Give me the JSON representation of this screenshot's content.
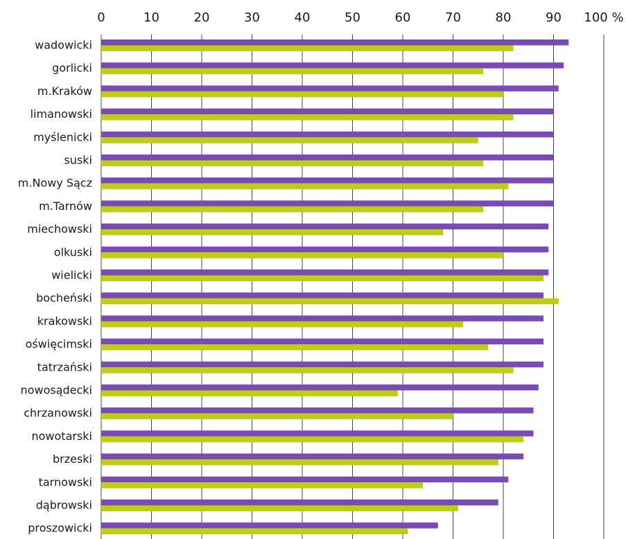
{
  "chart_data": {
    "type": "bar",
    "orientation": "horizontal",
    "categories": [
      "wadowicki",
      "gorlicki",
      "m.Kraków",
      "limanowski",
      "myślenicki",
      "suski",
      "m.Nowy Sącz",
      "m.Tarnów",
      "miechowski",
      "olkuski",
      "wielicki",
      "bocheński",
      "krakowski",
      "oświęcimski",
      "tatrzański",
      "nowosądecki",
      "chrzanowski",
      "nowotarski",
      "brzeski",
      "tarnowski",
      "dąbrowski",
      "proszowicki"
    ],
    "series": [
      {
        "color": "#7b4bb5",
        "values": [
          93,
          92,
          91,
          90,
          90,
          90,
          90,
          90,
          89,
          89,
          89,
          88,
          88,
          88,
          88,
          87,
          86,
          86,
          84,
          81,
          79,
          67
        ]
      },
      {
        "color": "#bccf13",
        "values": [
          82,
          76,
          80,
          82,
          75,
          76,
          81,
          76,
          68,
          80,
          88,
          91,
          72,
          77,
          82,
          59,
          70,
          84,
          79,
          64,
          71,
          61
        ]
      }
    ],
    "xticks": [
      "0",
      "10",
      "20",
      "30",
      "40",
      "50",
      "60",
      "70",
      "80",
      "90",
      "100 %"
    ],
    "xlim": [
      0,
      100
    ],
    "x_axis_position": "top",
    "grid": "vertical"
  }
}
